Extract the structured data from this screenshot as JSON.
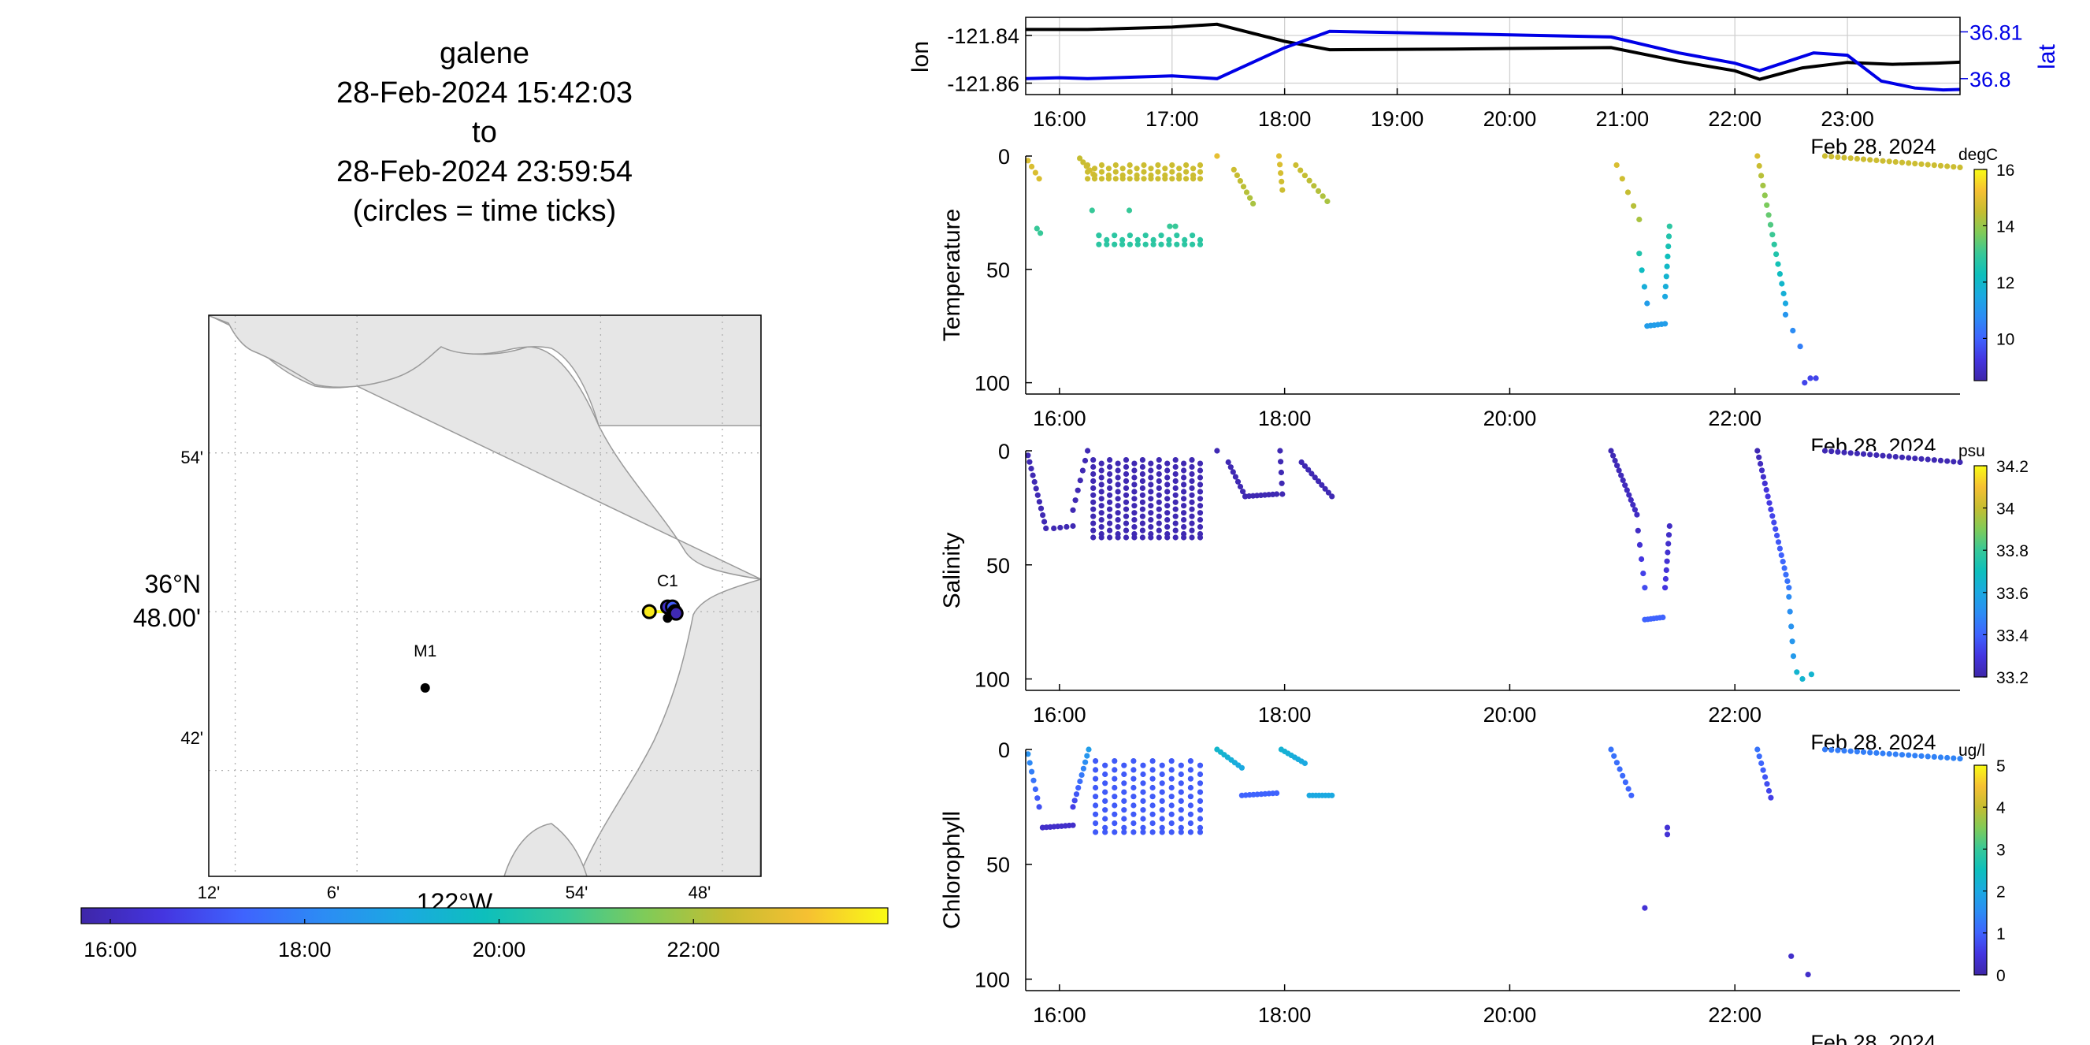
{
  "title_block": {
    "vehicle": "galene",
    "start": "28-Feb-2024 15:42:03",
    "to": "to",
    "end": "28-Feb-2024 23:59:54",
    "note": "(circles = time ticks)"
  },
  "colors": {
    "lon_line": "#000000",
    "lat_line": "#0000e6",
    "land": "#e6e6e6",
    "coast": "#9a9a9a",
    "grid": "#b0b0b0"
  },
  "colormap": [
    "#3e26a8",
    "#4435e0",
    "#3f63fe",
    "#2c8cf4",
    "#1ba9e1",
    "#0dbfbc",
    "#37c898",
    "#80cb58",
    "#c5bd31",
    "#f6c032",
    "#f9fb15"
  ],
  "chart_data": [
    {
      "type": "scatter",
      "name": "map",
      "xlabel": "122°W",
      "ylabel_top": "36°N",
      "ylabel_bottom": "48.00'",
      "x_ticks": [
        "12'",
        "6'",
        "54'",
        "48'"
      ],
      "y_ticks": [
        "54'",
        "42'"
      ],
      "lon_range": [
        -122.2217,
        -121.7683
      ],
      "lat_range": [
        36.6333,
        36.9867
      ],
      "labeled_points": [
        {
          "label": "M1",
          "lon": -122.044,
          "lat": 36.752
        },
        {
          "label": "C1",
          "lon": -121.845,
          "lat": 36.796
        }
      ],
      "track": {
        "lon": [
          -121.86,
          -121.85,
          -121.846,
          -121.843,
          -121.841,
          -121.839,
          -121.842
        ],
        "lat": [
          36.8,
          36.8,
          36.8,
          36.803,
          36.803,
          36.8,
          36.799
        ]
      },
      "time_ticks": [
        {
          "lon": -121.86,
          "lat": 36.8,
          "frac": 0.97
        },
        {
          "lon": -121.845,
          "lat": 36.803,
          "frac": 0.05
        },
        {
          "lon": -121.841,
          "lat": 36.803,
          "frac": 0.18
        },
        {
          "lon": -121.839,
          "lat": 36.8,
          "frac": 0.12
        },
        {
          "lon": -121.838,
          "lat": 36.799,
          "frac": 0.02
        }
      ],
      "colorbar_ticks": [
        "16:00",
        "18:00",
        "20:00",
        "22:00"
      ],
      "colorbar_range_hours": [
        15.7,
        24.0
      ]
    },
    {
      "type": "line",
      "name": "position",
      "ylabel_left": "lon",
      "ylabel_right": "lat",
      "left_ticks": [
        "-121.84",
        "-121.86"
      ],
      "right_ticks": [
        "36.81",
        "36.8"
      ],
      "x_ticks": [
        "16:00",
        "17:00",
        "18:00",
        "19:00",
        "20:00",
        "21:00",
        "22:00",
        "23:00"
      ],
      "date_label": "Feb 28, 2024",
      "x_range_hours": [
        15.7,
        24.0
      ],
      "lon_range": [
        -121.8648,
        -121.8324
      ],
      "lat_range": [
        36.7966,
        36.8131
      ],
      "series": [
        {
          "name": "lon",
          "axis": "left",
          "t": [
            15.7,
            16.25,
            17.0,
            17.4,
            18.0,
            18.4,
            19.5,
            20.9,
            21.5,
            22.0,
            22.22,
            22.6,
            23.0,
            23.4,
            23.8,
            24.0
          ],
          "values": [
            -121.8375,
            -121.8375,
            -121.8365,
            -121.8353,
            -121.8425,
            -121.846,
            -121.8457,
            -121.8451,
            -121.8508,
            -121.8548,
            -121.8584,
            -121.8536,
            -121.8513,
            -121.8521,
            -121.8516,
            -121.8512
          ]
        },
        {
          "name": "lat",
          "axis": "right",
          "t": [
            15.7,
            16.0,
            16.25,
            17.0,
            17.4,
            18.0,
            18.4,
            19.5,
            20.9,
            21.5,
            22.0,
            22.22,
            22.7,
            23.0,
            23.3,
            23.6,
            23.85,
            24.0
          ],
          "values": [
            36.8,
            36.8002,
            36.8,
            36.8006,
            36.8,
            36.8066,
            36.8101,
            36.8096,
            36.8089,
            36.8055,
            36.8033,
            36.8017,
            36.8055,
            36.805,
            36.7995,
            36.798,
            36.7976,
            36.7977
          ]
        }
      ]
    },
    {
      "type": "scatter",
      "name": "temperature",
      "ylabel": "Temperature",
      "units": "degC",
      "x_ticks": [
        "16:00",
        "18:00",
        "20:00",
        "22:00"
      ],
      "y_ticks": [
        "0",
        "50",
        "100"
      ],
      "date_label": "Feb 28, 2024",
      "y_range": [
        0,
        105
      ],
      "color_range": [
        8.5,
        16
      ],
      "colorbar_ticks": [
        "16",
        "14",
        "12",
        "10"
      ],
      "segments": [
        {
          "kind": "dive",
          "t0": 15.72,
          "t1": 15.82,
          "d0": 2,
          "d1": 10,
          "c0": 14.8,
          "c1": 14.8,
          "n": 4
        },
        {
          "kind": "points",
          "t": [
            15.8,
            15.83
          ],
          "d": [
            32,
            34
          ],
          "c": 13.0
        },
        {
          "kind": "dive",
          "t0": 16.18,
          "t1": 16.3,
          "d0": 1,
          "d1": 8,
          "c0": 14.5,
          "c1": 14.8,
          "n": 5
        },
        {
          "kind": "grid",
          "t0": 16.25,
          "t1": 17.25,
          "d0": 4,
          "d1": 10,
          "c": 14.6,
          "cols": 17,
          "rows": 3
        },
        {
          "kind": "points",
          "t": [
            16.29,
            16.35
          ],
          "d": [
            24,
            35
          ],
          "c": 13.0
        },
        {
          "kind": "grid",
          "t0": 16.35,
          "t1": 17.25,
          "d0": 35,
          "d1": 39,
          "c": 12.8,
          "cols": 14,
          "rows": 2
        },
        {
          "kind": "points",
          "t": [
            16.62,
            16.98,
            17.03
          ],
          "d": [
            24,
            31,
            31
          ],
          "c": 13.0
        },
        {
          "kind": "points",
          "t": [
            17.4
          ],
          "d": [
            0
          ],
          "c": 15.0
        },
        {
          "kind": "dive",
          "t0": 17.55,
          "t1": 17.72,
          "d0": 6,
          "d1": 21,
          "c0": 14.6,
          "c1": 14.2,
          "n": 7
        },
        {
          "kind": "dive",
          "t0": 17.95,
          "t1": 17.98,
          "d0": 0,
          "d1": 15,
          "c0": 14.9,
          "c1": 14.6,
          "n": 5
        },
        {
          "kind": "dive",
          "t0": 18.1,
          "t1": 18.38,
          "d0": 4,
          "d1": 20,
          "c0": 14.6,
          "c1": 14.2,
          "n": 8
        },
        {
          "kind": "dive",
          "t0": 20.95,
          "t1": 21.15,
          "d0": 4,
          "d1": 28,
          "c0": 14.8,
          "c1": 14.2,
          "n": 5
        },
        {
          "kind": "dive",
          "t0": 21.15,
          "t1": 21.22,
          "d0": 43,
          "d1": 65,
          "c0": 12.6,
          "c1": 11.2,
          "n": 4
        },
        {
          "kind": "dive",
          "t0": 21.22,
          "t1": 21.38,
          "d0": 75,
          "d1": 74,
          "c0": 11.2,
          "c1": 11.2,
          "n": 6
        },
        {
          "kind": "dive",
          "t0": 21.38,
          "t1": 21.42,
          "d0": 62,
          "d1": 31,
          "c0": 11.5,
          "c1": 12.8,
          "n": 8
        },
        {
          "kind": "dive",
          "t0": 22.2,
          "t1": 22.45,
          "d0": 0,
          "d1": 65,
          "c0": 14.8,
          "c1": 11.5,
          "n": 16
        },
        {
          "kind": "dive",
          "t0": 22.45,
          "t1": 22.58,
          "d0": 70,
          "d1": 84,
          "c0": 11.0,
          "c1": 10.5,
          "n": 3
        },
        {
          "kind": "points",
          "t": [
            22.62,
            22.67,
            22.72
          ],
          "d": [
            100,
            98,
            98
          ],
          "c": 9.5
        },
        {
          "kind": "dive",
          "t0": 22.8,
          "t1": 24.0,
          "d0": 0,
          "d1": 5,
          "c0": 14.6,
          "c1": 14.6,
          "n": 22
        }
      ]
    },
    {
      "type": "scatter",
      "name": "salinity",
      "ylabel": "Salinity",
      "units": "psu",
      "x_ticks": [
        "16:00",
        "18:00",
        "20:00",
        "22:00"
      ],
      "y_ticks": [
        "0",
        "50",
        "100"
      ],
      "date_label": "Feb 28, 2024",
      "y_range": [
        0,
        105
      ],
      "color_range": [
        33.2,
        34.2
      ],
      "colorbar_ticks": [
        "34.2",
        "34",
        "33.8",
        "33.6",
        "33.4",
        "33.2"
      ],
      "segments": [
        {
          "kind": "dive",
          "t0": 15.72,
          "t1": 15.88,
          "d0": 2,
          "d1": 34,
          "c0": 33.22,
          "c1": 33.22,
          "n": 12
        },
        {
          "kind": "dive",
          "t0": 15.95,
          "t1": 16.12,
          "d0": 34,
          "d1": 33,
          "c0": 33.22,
          "c1": 33.22,
          "n": 4
        },
        {
          "kind": "dive",
          "t0": 16.12,
          "t1": 16.25,
          "d0": 26,
          "d1": 0,
          "c0": 33.22,
          "c1": 33.22,
          "n": 7
        },
        {
          "kind": "grid",
          "t0": 16.3,
          "t1": 17.25,
          "d0": 4,
          "d1": 38,
          "c": 33.22,
          "cols": 14,
          "rows": 12
        },
        {
          "kind": "points",
          "t": [
            17.4
          ],
          "d": [
            0
          ],
          "c": 33.22
        },
        {
          "kind": "dive",
          "t0": 17.5,
          "t1": 17.65,
          "d0": 5,
          "d1": 20,
          "c0": 33.22,
          "c1": 33.22,
          "n": 8
        },
        {
          "kind": "dive",
          "t0": 17.65,
          "t1": 17.93,
          "d0": 20,
          "d1": 19,
          "c0": 33.22,
          "c1": 33.22,
          "n": 9
        },
        {
          "kind": "dive",
          "t0": 17.96,
          "t1": 17.98,
          "d0": 0,
          "d1": 19,
          "c0": 33.22,
          "c1": 33.22,
          "n": 5
        },
        {
          "kind": "dive",
          "t0": 18.15,
          "t1": 18.42,
          "d0": 5,
          "d1": 20,
          "c0": 33.22,
          "c1": 33.22,
          "n": 10
        },
        {
          "kind": "dive",
          "t0": 20.9,
          "t1": 21.13,
          "d0": 0,
          "d1": 28,
          "c0": 33.22,
          "c1": 33.25,
          "n": 14
        },
        {
          "kind": "dive",
          "t0": 21.14,
          "t1": 21.2,
          "d0": 35,
          "d1": 60,
          "c0": 33.25,
          "c1": 33.35,
          "n": 5
        },
        {
          "kind": "dive",
          "t0": 21.2,
          "t1": 21.36,
          "d0": 74,
          "d1": 73,
          "c0": 33.4,
          "c1": 33.4,
          "n": 7
        },
        {
          "kind": "dive",
          "t0": 21.38,
          "t1": 21.42,
          "d0": 60,
          "d1": 33,
          "c0": 33.3,
          "c1": 33.25,
          "n": 8
        },
        {
          "kind": "dive",
          "t0": 22.2,
          "t1": 22.48,
          "d0": 0,
          "d1": 60,
          "c0": 33.22,
          "c1": 33.45,
          "n": 22
        },
        {
          "kind": "dive",
          "t0": 22.48,
          "t1": 22.52,
          "d0": 64,
          "d1": 90,
          "c0": 33.5,
          "c1": 33.55,
          "n": 5
        },
        {
          "kind": "points",
          "t": [
            22.55,
            22.6,
            22.68
          ],
          "d": [
            97,
            100,
            98
          ],
          "c": 33.65
        },
        {
          "kind": "dive",
          "t0": 22.8,
          "t1": 24.0,
          "d0": 0,
          "d1": 5,
          "c0": 33.22,
          "c1": 33.22,
          "n": 22
        }
      ]
    },
    {
      "type": "scatter",
      "name": "chlorophyll",
      "ylabel": "Chlorophyll",
      "units": "ug/l",
      "x_ticks": [
        "16:00",
        "18:00",
        "20:00",
        "22:00"
      ],
      "y_ticks": [
        "0",
        "50",
        "100"
      ],
      "date_label": "Feb 28, 2024",
      "y_range": [
        0,
        105
      ],
      "color_range": [
        0,
        5
      ],
      "colorbar_ticks": [
        "5",
        "4",
        "3",
        "2",
        "1",
        "0"
      ],
      "segments": [
        {
          "kind": "dive",
          "t0": 15.72,
          "t1": 15.82,
          "d0": 2,
          "d1": 25,
          "c0": 1.6,
          "c1": 0.8,
          "n": 7
        },
        {
          "kind": "dive",
          "t0": 15.85,
          "t1": 16.12,
          "d0": 34,
          "d1": 33,
          "c0": 0.3,
          "c1": 0.3,
          "n": 9
        },
        {
          "kind": "dive",
          "t0": 16.12,
          "t1": 16.26,
          "d0": 25,
          "d1": 0,
          "c0": 0.6,
          "c1": 1.8,
          "n": 10
        },
        {
          "kind": "grid",
          "t0": 16.32,
          "t1": 17.25,
          "d0": 5,
          "d1": 36,
          "c": 0.9,
          "cols": 12,
          "rows": 9
        },
        {
          "kind": "dive",
          "t0": 17.4,
          "t1": 17.62,
          "d0": 0,
          "d1": 8,
          "c0": 2.3,
          "c1": 2.0,
          "n": 8
        },
        {
          "kind": "dive",
          "t0": 17.62,
          "t1": 17.93,
          "d0": 20,
          "d1": 19,
          "c0": 1.0,
          "c1": 1.0,
          "n": 10
        },
        {
          "kind": "dive",
          "t0": 17.97,
          "t1": 18.18,
          "d0": 0,
          "d1": 6,
          "c0": 2.2,
          "c1": 2.0,
          "n": 8
        },
        {
          "kind": "dive",
          "t0": 18.22,
          "t1": 18.42,
          "d0": 20,
          "d1": 20,
          "c0": 2.0,
          "c1": 2.0,
          "n": 8
        },
        {
          "kind": "dive",
          "t0": 20.9,
          "t1": 21.08,
          "d0": 0,
          "d1": 20,
          "c0": 1.2,
          "c1": 1.0,
          "n": 8
        },
        {
          "kind": "points",
          "t": [
            21.2,
            21.4,
            21.4
          ],
          "d": [
            69,
            34,
            37
          ],
          "c": 0.4
        },
        {
          "kind": "dive",
          "t0": 22.2,
          "t1": 22.32,
          "d0": 0,
          "d1": 21,
          "c0": 1.2,
          "c1": 0.6,
          "n": 8
        },
        {
          "kind": "points",
          "t": [
            22.5,
            22.65
          ],
          "d": [
            90,
            98
          ],
          "c": 0.3
        },
        {
          "kind": "dive",
          "t0": 22.8,
          "t1": 24.0,
          "d0": 0,
          "d1": 4,
          "c0": 1.3,
          "c1": 1.4,
          "n": 22
        }
      ]
    }
  ]
}
